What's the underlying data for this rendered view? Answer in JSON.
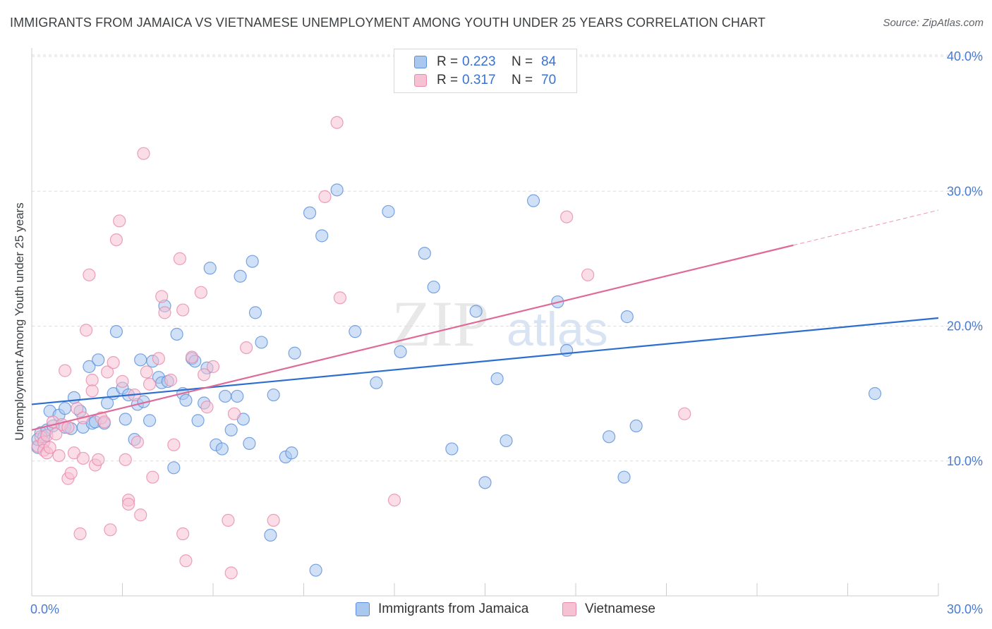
{
  "title": "IMMIGRANTS FROM JAMAICA VS VIETNAMESE UNEMPLOYMENT AMONG YOUTH UNDER 25 YEARS CORRELATION CHART",
  "source": "Source: ZipAtlas.com",
  "watermark": {
    "zip": "ZIP",
    "atlas": "atlas"
  },
  "legend": {
    "r_label": "R =",
    "n_label": "N =",
    "rows": [
      {
        "r": "0.223",
        "n": "84"
      },
      {
        "r": "0.317",
        "n": "70"
      }
    ]
  },
  "colors": {
    "blue_fill": "#a9c8f0",
    "blue_stroke": "#5b8fd9",
    "blue_line": "#2c6ed0",
    "pink_fill": "#f6c1d3",
    "pink_stroke": "#e88aaa",
    "pink_line": "#e06a97",
    "grid": "#dddddd",
    "tick_text": "#4a7bd0"
  },
  "chart_data": {
    "type": "scatter",
    "title": "IMMIGRANTS FROM JAMAICA VS VIETNAMESE UNEMPLOYMENT AMONG YOUTH UNDER 25 YEARS CORRELATION CHART",
    "xlabel": "",
    "ylabel": "Unemployment Among Youth under 25 years",
    "xlim": [
      0,
      30
    ],
    "ylim": [
      0,
      40
    ],
    "x_tick_labels": [
      "0.0%",
      "30.0%"
    ],
    "y_ticks": [
      10,
      20,
      30,
      40
    ],
    "y_tick_labels": [
      "10.0%",
      "20.0%",
      "30.0%",
      "40.0%"
    ],
    "grid": "horizontal dashed",
    "legend_position": "top-center",
    "series": [
      {
        "name": "Immigrants from Jamaica",
        "color": "#a9c8f0",
        "trend": {
          "x": [
            0,
            30
          ],
          "y": [
            14.2,
            20.6
          ]
        },
        "points": [
          [
            0.2,
            11.0
          ],
          [
            0.2,
            11.6
          ],
          [
            0.3,
            12.1
          ],
          [
            0.4,
            11.8
          ],
          [
            0.5,
            12.3
          ],
          [
            0.6,
            13.7
          ],
          [
            0.7,
            12.6
          ],
          [
            0.9,
            13.4
          ],
          [
            1.1,
            13.9
          ],
          [
            1.1,
            12.5
          ],
          [
            1.3,
            12.4
          ],
          [
            1.4,
            14.7
          ],
          [
            1.6,
            13.7
          ],
          [
            1.7,
            12.5
          ],
          [
            1.9,
            17.0
          ],
          [
            2.0,
            12.8
          ],
          [
            2.1,
            12.9
          ],
          [
            2.2,
            17.5
          ],
          [
            2.4,
            12.8
          ],
          [
            2.5,
            14.3
          ],
          [
            2.7,
            15.0
          ],
          [
            2.8,
            19.6
          ],
          [
            3.0,
            15.4
          ],
          [
            3.1,
            13.1
          ],
          [
            3.2,
            14.9
          ],
          [
            3.4,
            11.6
          ],
          [
            3.5,
            14.2
          ],
          [
            3.6,
            17.5
          ],
          [
            3.7,
            14.4
          ],
          [
            3.9,
            13.0
          ],
          [
            4.0,
            17.4
          ],
          [
            4.2,
            16.2
          ],
          [
            4.3,
            15.8
          ],
          [
            4.4,
            21.5
          ],
          [
            4.5,
            15.9
          ],
          [
            4.7,
            9.5
          ],
          [
            4.8,
            19.4
          ],
          [
            5.0,
            15.0
          ],
          [
            5.1,
            14.5
          ],
          [
            5.3,
            17.6
          ],
          [
            5.4,
            17.4
          ],
          [
            5.5,
            13.0
          ],
          [
            5.7,
            14.3
          ],
          [
            5.8,
            16.9
          ],
          [
            5.9,
            24.3
          ],
          [
            6.1,
            11.2
          ],
          [
            6.3,
            10.9
          ],
          [
            6.4,
            14.8
          ],
          [
            6.6,
            12.3
          ],
          [
            6.8,
            14.8
          ],
          [
            6.9,
            23.7
          ],
          [
            7.0,
            13.1
          ],
          [
            7.2,
            11.3
          ],
          [
            7.3,
            24.8
          ],
          [
            7.4,
            21.0
          ],
          [
            7.6,
            18.8
          ],
          [
            7.9,
            4.5
          ],
          [
            8.0,
            14.9
          ],
          [
            8.4,
            10.3
          ],
          [
            8.6,
            10.6
          ],
          [
            8.7,
            18.0
          ],
          [
            9.2,
            28.4
          ],
          [
            9.4,
            1.9
          ],
          [
            9.6,
            26.7
          ],
          [
            10.1,
            30.1
          ],
          [
            10.7,
            19.6
          ],
          [
            11.4,
            15.8
          ],
          [
            11.8,
            28.5
          ],
          [
            12.2,
            18.1
          ],
          [
            13.0,
            25.4
          ],
          [
            13.3,
            22.9
          ],
          [
            13.9,
            10.9
          ],
          [
            14.7,
            21.1
          ],
          [
            15.0,
            8.4
          ],
          [
            15.4,
            16.1
          ],
          [
            15.7,
            11.5
          ],
          [
            16.6,
            29.3
          ],
          [
            17.4,
            21.8
          ],
          [
            17.7,
            18.2
          ],
          [
            19.1,
            11.8
          ],
          [
            19.6,
            8.8
          ],
          [
            19.7,
            20.7
          ],
          [
            20.0,
            12.6
          ],
          [
            27.9,
            15.0
          ]
        ]
      },
      {
        "name": "Vietnamese",
        "color": "#f6c1d3",
        "trend": {
          "x": [
            0,
            25.2
          ],
          "y": [
            12.3,
            26.0
          ],
          "dashed_extension": {
            "x": [
              25.2,
              30
            ],
            "y": [
              26.0,
              28.6
            ]
          }
        },
        "points": [
          [
            0.2,
            11.1
          ],
          [
            0.3,
            11.8
          ],
          [
            0.4,
            11.4
          ],
          [
            0.4,
            10.8
          ],
          [
            0.5,
            10.6
          ],
          [
            0.5,
            11.9
          ],
          [
            0.6,
            11.0
          ],
          [
            0.7,
            12.9
          ],
          [
            0.8,
            12.0
          ],
          [
            0.9,
            10.4
          ],
          [
            1.0,
            12.7
          ],
          [
            1.1,
            16.7
          ],
          [
            1.2,
            8.7
          ],
          [
            1.2,
            12.5
          ],
          [
            1.3,
            9.1
          ],
          [
            1.4,
            10.6
          ],
          [
            1.5,
            13.9
          ],
          [
            1.6,
            4.6
          ],
          [
            1.7,
            13.2
          ],
          [
            1.7,
            10.2
          ],
          [
            1.8,
            19.7
          ],
          [
            1.9,
            23.8
          ],
          [
            2.0,
            16.0
          ],
          [
            2.0,
            15.2
          ],
          [
            2.1,
            9.7
          ],
          [
            2.2,
            10.1
          ],
          [
            2.3,
            13.2
          ],
          [
            2.4,
            12.9
          ],
          [
            2.5,
            16.6
          ],
          [
            2.6,
            4.9
          ],
          [
            2.7,
            17.3
          ],
          [
            2.8,
            26.4
          ],
          [
            2.9,
            27.8
          ],
          [
            3.0,
            15.9
          ],
          [
            3.1,
            10.1
          ],
          [
            3.2,
            7.1
          ],
          [
            3.2,
            6.8
          ],
          [
            3.4,
            14.9
          ],
          [
            3.5,
            11.4
          ],
          [
            3.6,
            6.0
          ],
          [
            3.7,
            32.8
          ],
          [
            3.8,
            16.6
          ],
          [
            3.9,
            15.7
          ],
          [
            4.0,
            8.8
          ],
          [
            4.2,
            17.6
          ],
          [
            4.3,
            22.2
          ],
          [
            4.4,
            21.0
          ],
          [
            4.6,
            16.0
          ],
          [
            4.7,
            11.2
          ],
          [
            4.9,
            25.0
          ],
          [
            5.0,
            21.2
          ],
          [
            5.0,
            4.6
          ],
          [
            5.1,
            2.6
          ],
          [
            5.3,
            17.7
          ],
          [
            5.6,
            22.5
          ],
          [
            5.7,
            16.4
          ],
          [
            5.8,
            14.0
          ],
          [
            6.0,
            17.0
          ],
          [
            6.5,
            5.6
          ],
          [
            6.6,
            1.7
          ],
          [
            6.7,
            13.5
          ],
          [
            7.1,
            18.4
          ],
          [
            8.0,
            5.6
          ],
          [
            9.7,
            29.6
          ],
          [
            10.1,
            35.1
          ],
          [
            10.2,
            22.1
          ],
          [
            12.0,
            7.1
          ],
          [
            17.7,
            28.1
          ],
          [
            18.4,
            23.8
          ],
          [
            21.6,
            13.5
          ]
        ]
      }
    ]
  },
  "bottom_legend": [
    "Immigrants from Jamaica",
    "Vietnamese"
  ]
}
